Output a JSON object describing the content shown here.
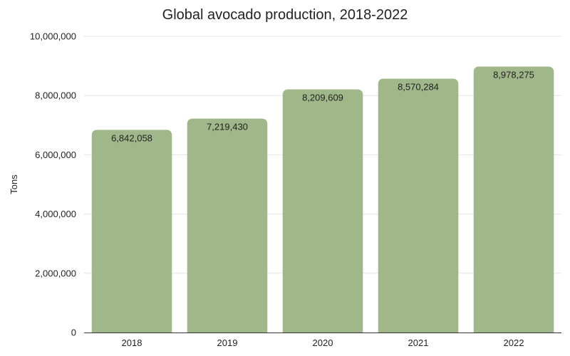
{
  "chart_data": {
    "type": "bar",
    "title": "Global avocado production, 2018-2022",
    "xlabel": "",
    "ylabel": "Tons",
    "categories": [
      "2018",
      "2019",
      "2020",
      "2021",
      "2022"
    ],
    "values": [
      6842058,
      7219430,
      8209609,
      8570284,
      8978275
    ],
    "value_labels": [
      "6,842,058",
      "7,219,430",
      "8,209,609",
      "8,570,284",
      "8,978,275"
    ],
    "ylim": [
      0,
      10000000
    ],
    "yticks": [
      0,
      2000000,
      4000000,
      6000000,
      8000000,
      10000000
    ],
    "ytick_labels": [
      "0",
      "2,000,000",
      "4,000,000",
      "6,000,000",
      "8,000,000",
      "10,000,000"
    ],
    "grid": true,
    "legend": "none",
    "bar_color": "#a0b78a"
  }
}
